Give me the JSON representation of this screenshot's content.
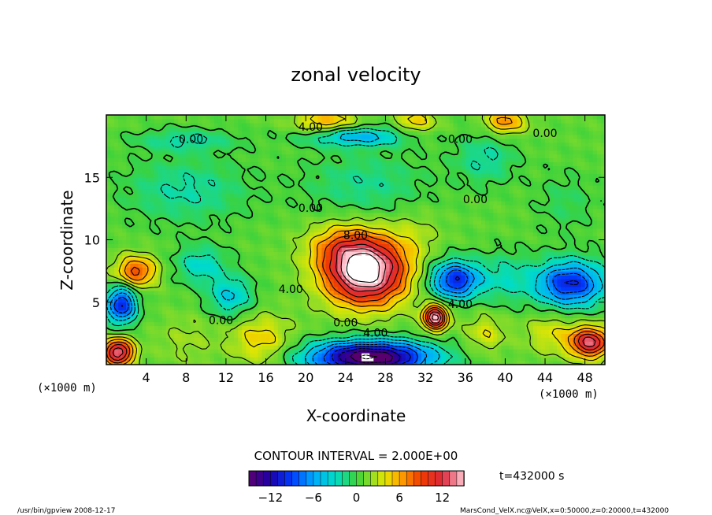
{
  "chart_data": {
    "type": "heatmap",
    "title": "zonal velocity",
    "xlabel": "X-coordinate",
    "ylabel": "Z-coordinate",
    "x_unit_label": "(×1000 m)",
    "x_unit_label_right": "(×1000 m)",
    "xlim": [
      0,
      50
    ],
    "ylim": [
      0,
      20
    ],
    "x_ticks": [
      4,
      8,
      12,
      16,
      20,
      24,
      28,
      32,
      36,
      40,
      44,
      48
    ],
    "y_ticks": [
      5,
      10,
      15
    ],
    "contour_interval_text": "CONTOUR INTERVAL = 2.000E+00",
    "colorbar": {
      "min": -15,
      "max": 15,
      "ticks": [
        -12,
        -6,
        0,
        6,
        12
      ]
    },
    "contour_labels": [
      {
        "text": "4.00",
        "x": 20.5,
        "y": 19.0
      },
      {
        "text": "0.00",
        "x": 8.5,
        "y": 18.0
      },
      {
        "text": "0.00",
        "x": 35.5,
        "y": 18.0
      },
      {
        "text": "0.00",
        "x": 44.0,
        "y": 18.5
      },
      {
        "text": "0.00",
        "x": 37.0,
        "y": 13.2
      },
      {
        "text": "0.00",
        "x": 20.5,
        "y": 12.5
      },
      {
        "text": "8.00",
        "x": 25.0,
        "y": 10.3
      },
      {
        "text": "4.00",
        "x": 18.5,
        "y": 6.0
      },
      {
        "text": "4.00",
        "x": 35.5,
        "y": 4.8
      },
      {
        "text": "0.00",
        "x": 11.5,
        "y": 3.5
      },
      {
        "text": "0.00",
        "x": 24.0,
        "y": 3.3
      },
      {
        "text": "4.00",
        "x": 27.0,
        "y": 2.5
      }
    ],
    "features": [
      {
        "x": 26.0,
        "z": 7.5,
        "sx": 4.0,
        "sz": 2.6,
        "v": 17
      },
      {
        "x": 23.5,
        "z": 9.5,
        "sx": 3.5,
        "sz": 1.8,
        "v": 4
      },
      {
        "x": 26.5,
        "z": 0.6,
        "sx": 6.0,
        "sz": 1.3,
        "v": -17
      },
      {
        "x": 1.5,
        "z": 4.8,
        "sx": 1.5,
        "sz": 1.5,
        "v": -11
      },
      {
        "x": 3.0,
        "z": 7.5,
        "sx": 2.0,
        "sz": 1.2,
        "v": 8
      },
      {
        "x": 1.2,
        "z": 1.0,
        "sx": 1.5,
        "sz": 1.1,
        "v": 13
      },
      {
        "x": 12.5,
        "z": 5.5,
        "sx": 2.2,
        "sz": 1.6,
        "v": -5
      },
      {
        "x": 9.5,
        "z": 8.0,
        "sx": 2.5,
        "sz": 1.5,
        "v": -4
      },
      {
        "x": 15.5,
        "z": 2.0,
        "sx": 3.0,
        "sz": 2.0,
        "v": 4
      },
      {
        "x": 8.0,
        "z": 2.0,
        "sx": 3.0,
        "sz": 2.0,
        "v": 1.5
      },
      {
        "x": 33.0,
        "z": 3.8,
        "sx": 1.2,
        "sz": 1.0,
        "v": 14
      },
      {
        "x": 35.0,
        "z": 6.8,
        "sx": 2.5,
        "sz": 1.5,
        "v": -11
      },
      {
        "x": 46.5,
        "z": 6.5,
        "sx": 3.5,
        "sz": 1.8,
        "v": -11
      },
      {
        "x": 40.0,
        "z": 7.0,
        "sx": 2.5,
        "sz": 2.0,
        "v": -3
      },
      {
        "x": 48.5,
        "z": 1.8,
        "sx": 2.0,
        "sz": 1.2,
        "v": 12
      },
      {
        "x": 44.5,
        "z": 2.5,
        "sx": 2.5,
        "sz": 1.6,
        "v": 3
      },
      {
        "x": 38.0,
        "z": 2.5,
        "sx": 2.0,
        "sz": 1.5,
        "v": 3
      },
      {
        "x": 22.0,
        "z": 19.5,
        "sx": 3.0,
        "sz": 1.0,
        "v": 5
      },
      {
        "x": 31.0,
        "z": 19.5,
        "sx": 2.0,
        "sz": 1.0,
        "v": 4
      },
      {
        "x": 40.0,
        "z": 19.5,
        "sx": 2.0,
        "sz": 1.0,
        "v": 6
      },
      {
        "x": 25.0,
        "z": 18.3,
        "sx": 5.0,
        "sz": 0.8,
        "v": -6
      },
      {
        "x": 8.0,
        "z": 18.0,
        "sx": 5.0,
        "sz": 0.9,
        "v": -3
      },
      {
        "x": 8.0,
        "z": 14.0,
        "sx": 6.0,
        "sz": 2.5,
        "v": -3
      },
      {
        "x": 26.0,
        "z": 14.5,
        "sx": 6.0,
        "sz": 2.5,
        "v": -2.5
      },
      {
        "x": 38.0,
        "z": 16.5,
        "sx": 3.0,
        "sz": 2.0,
        "v": -3
      },
      {
        "x": 46.0,
        "z": 13.0,
        "sx": 3.0,
        "sz": 2.5,
        "v": -1.5
      },
      {
        "x": 31.0,
        "z": 10.5,
        "sx": 2.5,
        "sz": 2.0,
        "v": 1.5
      }
    ]
  },
  "time_label": "t=432000 s",
  "footer": {
    "left": "/usr/bin/gpview  2008-12-17",
    "right": "MarsCond_VelX.nc@VelX,x=0:50000,z=0:20000,t=432000"
  }
}
